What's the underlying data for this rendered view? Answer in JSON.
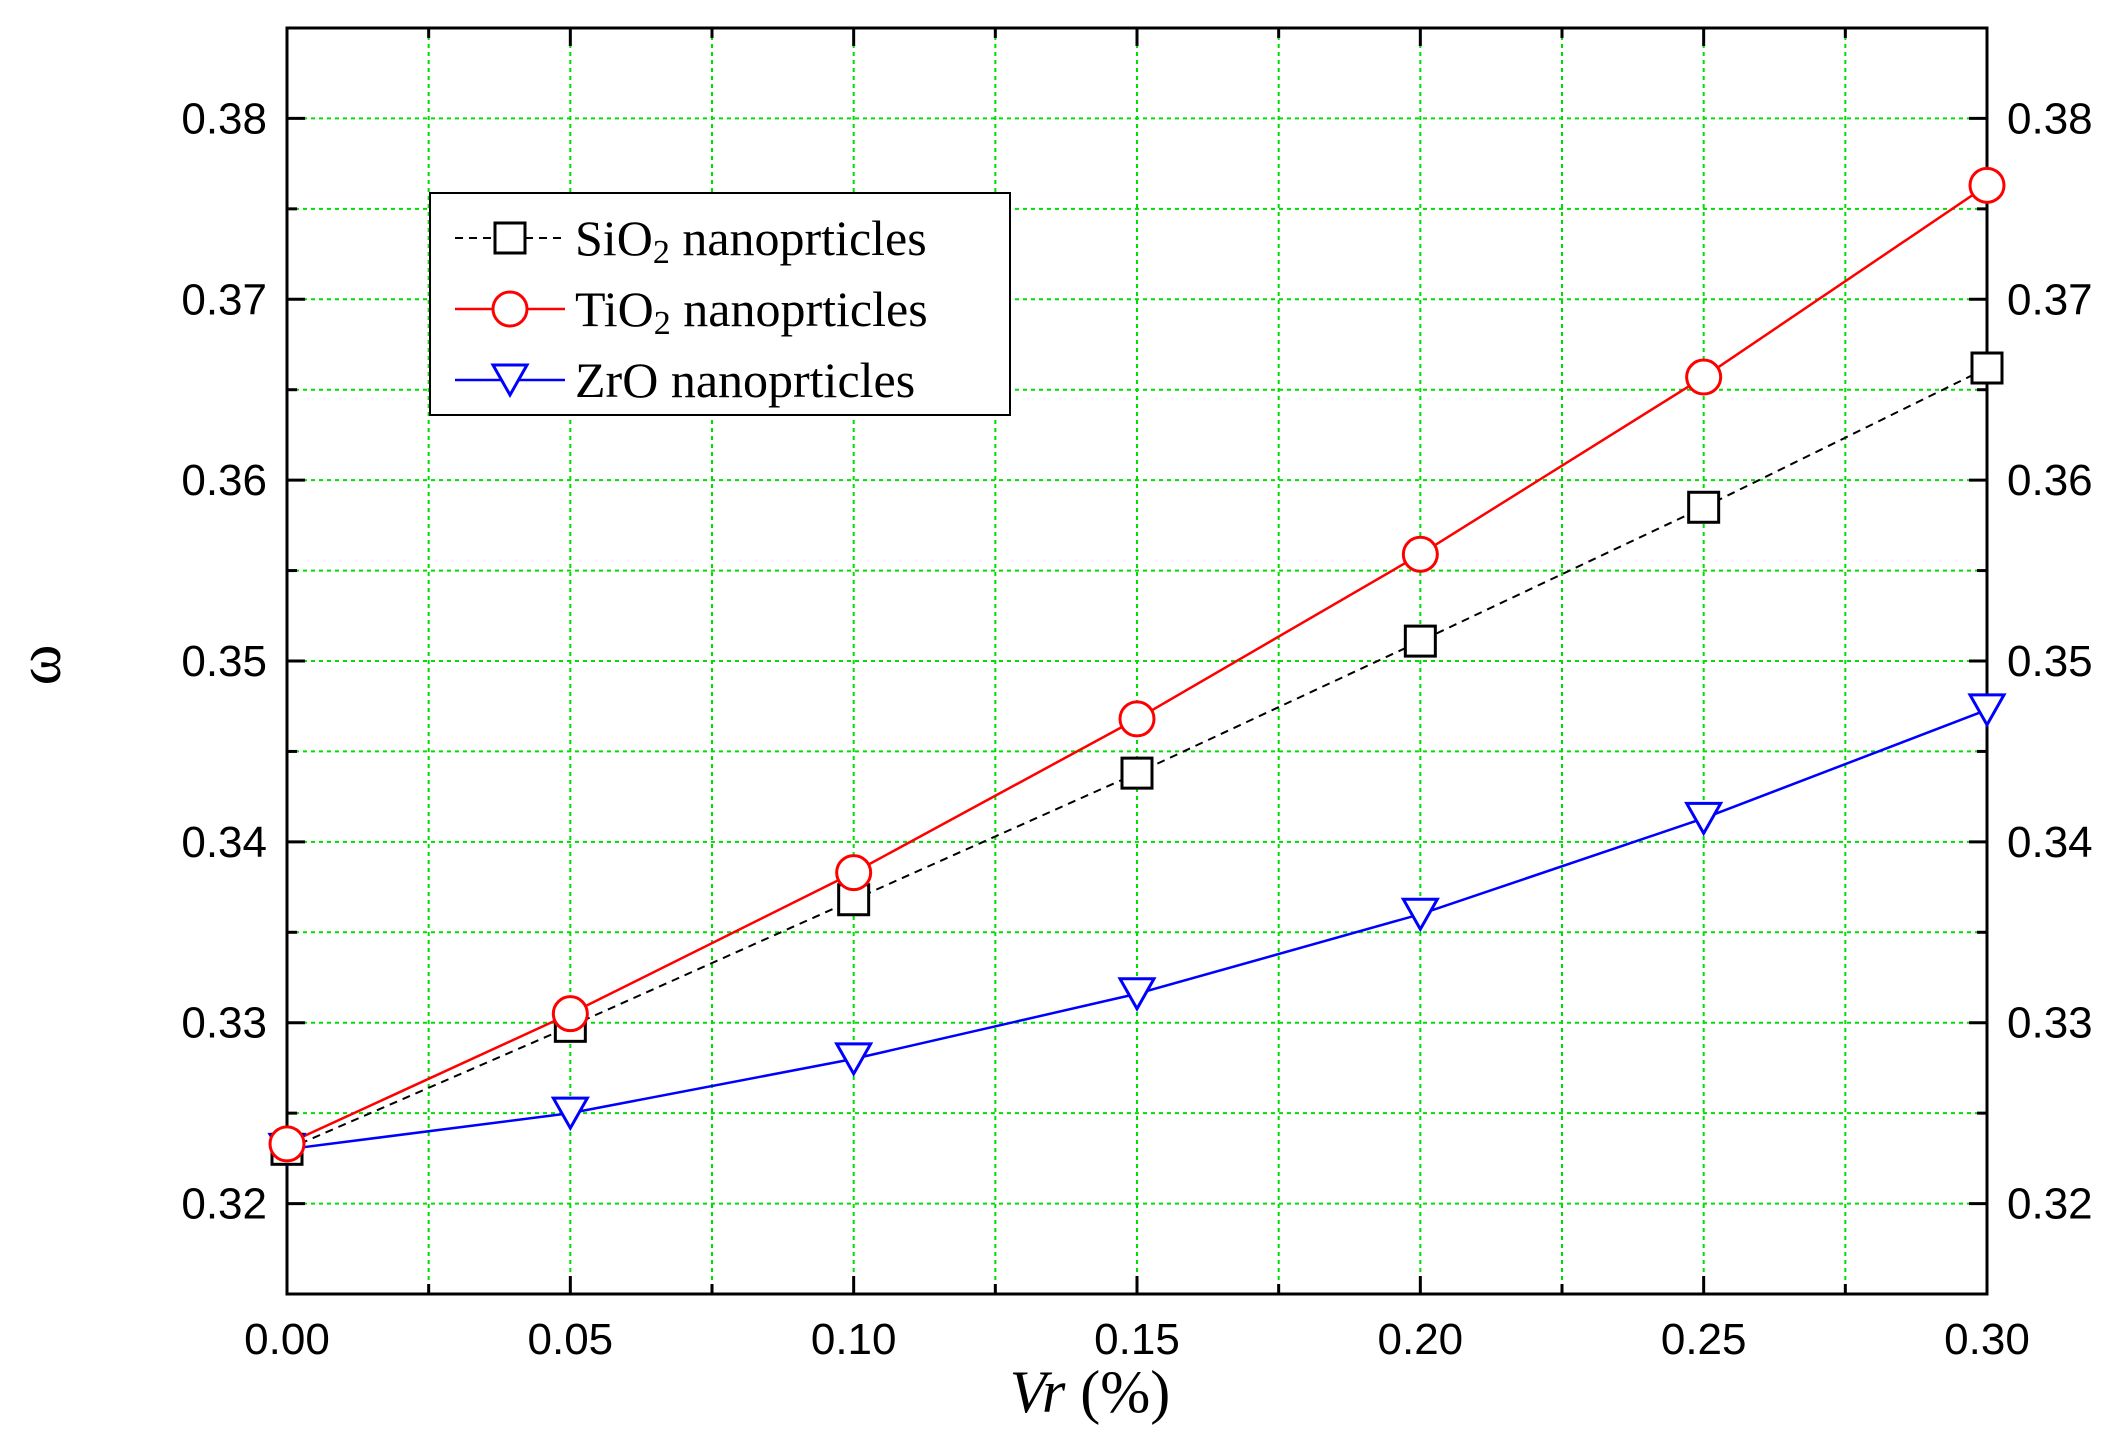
{
  "chart_data": {
    "type": "line",
    "xlabel_italic": "Vr",
    "xlabel_unit": "(%)",
    "ylabel": "ω",
    "xlim": [
      0.0,
      0.3
    ],
    "ylim": [
      0.315,
      0.385
    ],
    "x_ticks": [
      "0.00",
      "0.05",
      "0.10",
      "0.15",
      "0.20",
      "0.25",
      "0.30"
    ],
    "y_ticks": [
      "0.32",
      "0.33",
      "0.34",
      "0.35",
      "0.36",
      "0.37",
      "0.38"
    ],
    "grid": true,
    "legend_position": "top-left",
    "x": [
      0.0,
      0.05,
      0.1,
      0.15,
      0.2,
      0.25,
      0.3
    ],
    "series": [
      {
        "name": "SiO2 nanoprticles",
        "label_main": "SiO",
        "label_sub": "2",
        "label_rest": " nanoprticles",
        "marker": "square",
        "line_style": "dashed",
        "color": "#000000",
        "values": [
          0.323,
          0.3298,
          0.3368,
          0.3438,
          0.3511,
          0.3585,
          0.3662
        ]
      },
      {
        "name": "TiO2 nanoprticles",
        "label_main": "TiO",
        "label_sub": "2",
        "label_rest": " nanoprticles",
        "marker": "circle",
        "line_style": "solid",
        "color": "#ff0000",
        "values": [
          0.3233,
          0.3305,
          0.3383,
          0.3468,
          0.3559,
          0.3657,
          0.3763
        ]
      },
      {
        "name": "ZrO nanoprticles",
        "label_main": "ZrO",
        "label_sub": "",
        "label_rest": " nanoprticles",
        "marker": "triangle-down",
        "line_style": "solid",
        "color": "#0000ff",
        "values": [
          0.323,
          0.325,
          0.328,
          0.3316,
          0.336,
          0.3413,
          0.3473
        ]
      }
    ]
  },
  "colors": {
    "grid": "#00dd00",
    "axis": "#000000"
  }
}
